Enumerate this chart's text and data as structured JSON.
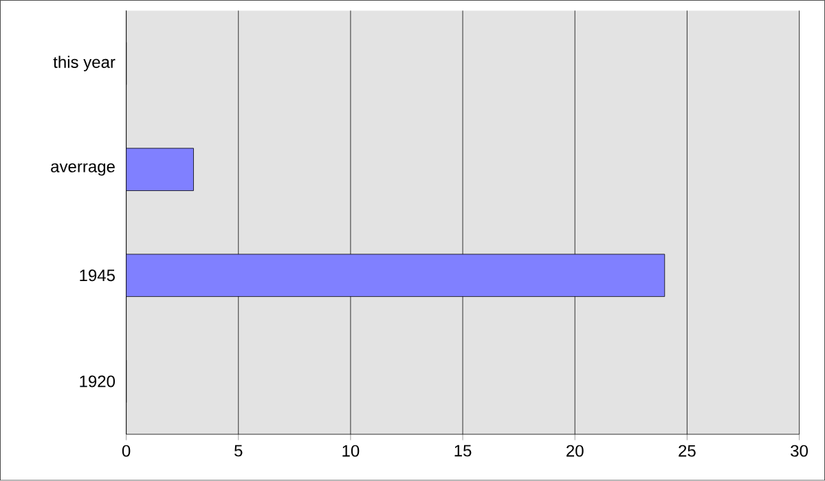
{
  "chart_data": {
    "type": "bar",
    "orientation": "horizontal",
    "categories": [
      "this year",
      "averrage",
      "1945",
      "1920"
    ],
    "values": [
      0,
      3,
      24,
      0
    ],
    "color": "#8080ff",
    "xlim": [
      0,
      30
    ],
    "xticks": [
      0,
      5,
      10,
      15,
      20,
      25,
      30
    ],
    "grid": "x"
  }
}
